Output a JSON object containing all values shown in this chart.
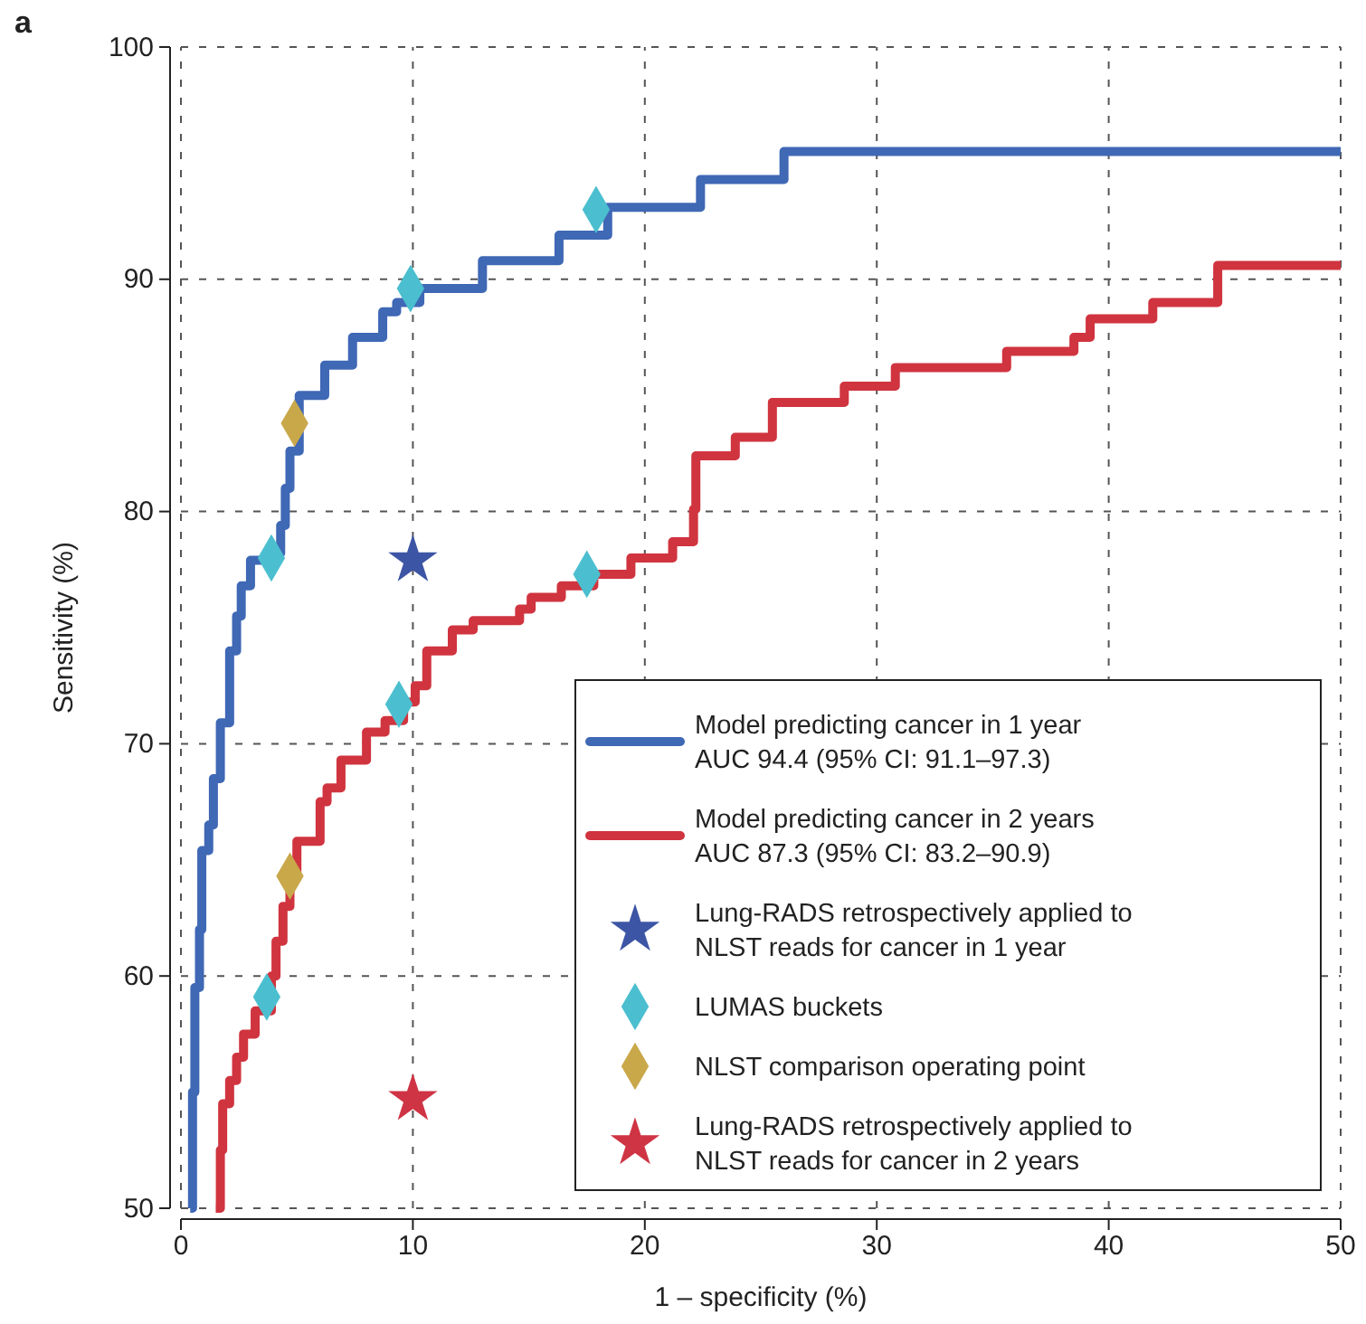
{
  "chart_data": {
    "type": "step",
    "xlabel": "1 – specificity (%)",
    "ylabel": "Sensitivity (%)",
    "xlim": [
      0,
      50
    ],
    "ylim": [
      50,
      100
    ],
    "xticks": [
      0,
      10,
      20,
      30,
      40,
      50
    ],
    "yticks": [
      50,
      60,
      70,
      80,
      90,
      100
    ],
    "grid": true,
    "legend": "bottom right",
    "annotations": [
      "a"
    ],
    "series": [
      {
        "name": "Model predicting cancer in 1 year\nAUC 94.4 (95% CI: 91.1–97.3)",
        "color": "#3f68b5",
        "x": [
          0.4,
          0.5,
          0.6,
          0.8,
          0.9,
          1.2,
          1.4,
          1.7,
          2.1,
          2.4,
          2.6,
          3.0,
          4.0,
          4.3,
          4.5,
          4.7,
          5.1,
          6.2,
          7.4,
          8.7,
          9.3,
          10.3,
          13.0,
          16.3,
          18.4,
          22.4,
          26.0,
          50
        ],
        "values": [
          50,
          55,
          59.5,
          62,
          65.4,
          66.5,
          68.5,
          70.9,
          74,
          75.5,
          76.8,
          77.9,
          78.2,
          79.4,
          81,
          82.6,
          85,
          86.3,
          87.5,
          88.6,
          89.0,
          89.6,
          90.8,
          91.9,
          93.1,
          94.3,
          95.5,
          95.5
        ]
      },
      {
        "name": "Model predicting cancer in 2 years\nAUC 87.3 (95% CI: 83.2–90.9)",
        "color": "#d0343f",
        "x": [
          1.5,
          1.7,
          1.8,
          2.1,
          2.4,
          2.7,
          3.2,
          3.9,
          4.1,
          4.4,
          4.7,
          5.0,
          6.0,
          6.3,
          6.9,
          8.0,
          8.8,
          9.6,
          10.1,
          10.6,
          11.7,
          12.6,
          14.6,
          15.1,
          16.4,
          17.8,
          19.4,
          21.2,
          22.1,
          22.2,
          23.9,
          25.5,
          28.6,
          30.8,
          35.6,
          38.5,
          39.2,
          41.9,
          44.7,
          50
        ],
        "values": [
          50,
          52.5,
          54.5,
          55.5,
          56.5,
          57.5,
          58.5,
          60,
          61.5,
          63,
          64.5,
          65.8,
          67.5,
          68.1,
          69.3,
          70.5,
          71,
          71.8,
          72.5,
          74,
          74.9,
          75.3,
          75.8,
          76.3,
          76.8,
          77.3,
          78.0,
          78.7,
          80.1,
          82.4,
          83.2,
          84.7,
          85.4,
          86.2,
          86.9,
          87.5,
          88.3,
          89.0,
          90.6,
          90.6
        ]
      },
      {
        "name": "Lung-RADS retrospectively applied to\nNLST reads for cancer in 1 year",
        "type": "scatter",
        "marker": "star",
        "color": "#3d55a5",
        "x": [
          10.0
        ],
        "values": [
          77.9
        ]
      },
      {
        "name": "LUMAS buckets",
        "type": "scatter",
        "marker": "diamond",
        "color": "#4bbfcf",
        "x": [
          3.9,
          9.9,
          17.9,
          3.7,
          9.4,
          17.5
        ],
        "values": [
          78,
          89.6,
          93,
          59.1,
          71.7,
          77.3
        ]
      },
      {
        "name": "NLST comparison operating point",
        "type": "scatter",
        "marker": "diamond",
        "color": "#c9a84a",
        "x": [
          4.9,
          4.7
        ],
        "values": [
          83.8,
          64.3
        ]
      },
      {
        "name": "Lung-RADS retrospectively applied to\nNLST reads for cancer in 2 years",
        "type": "scatter",
        "marker": "star",
        "color": "#cf3445",
        "x": [
          10.0
        ],
        "values": [
          54.7
        ]
      }
    ]
  }
}
